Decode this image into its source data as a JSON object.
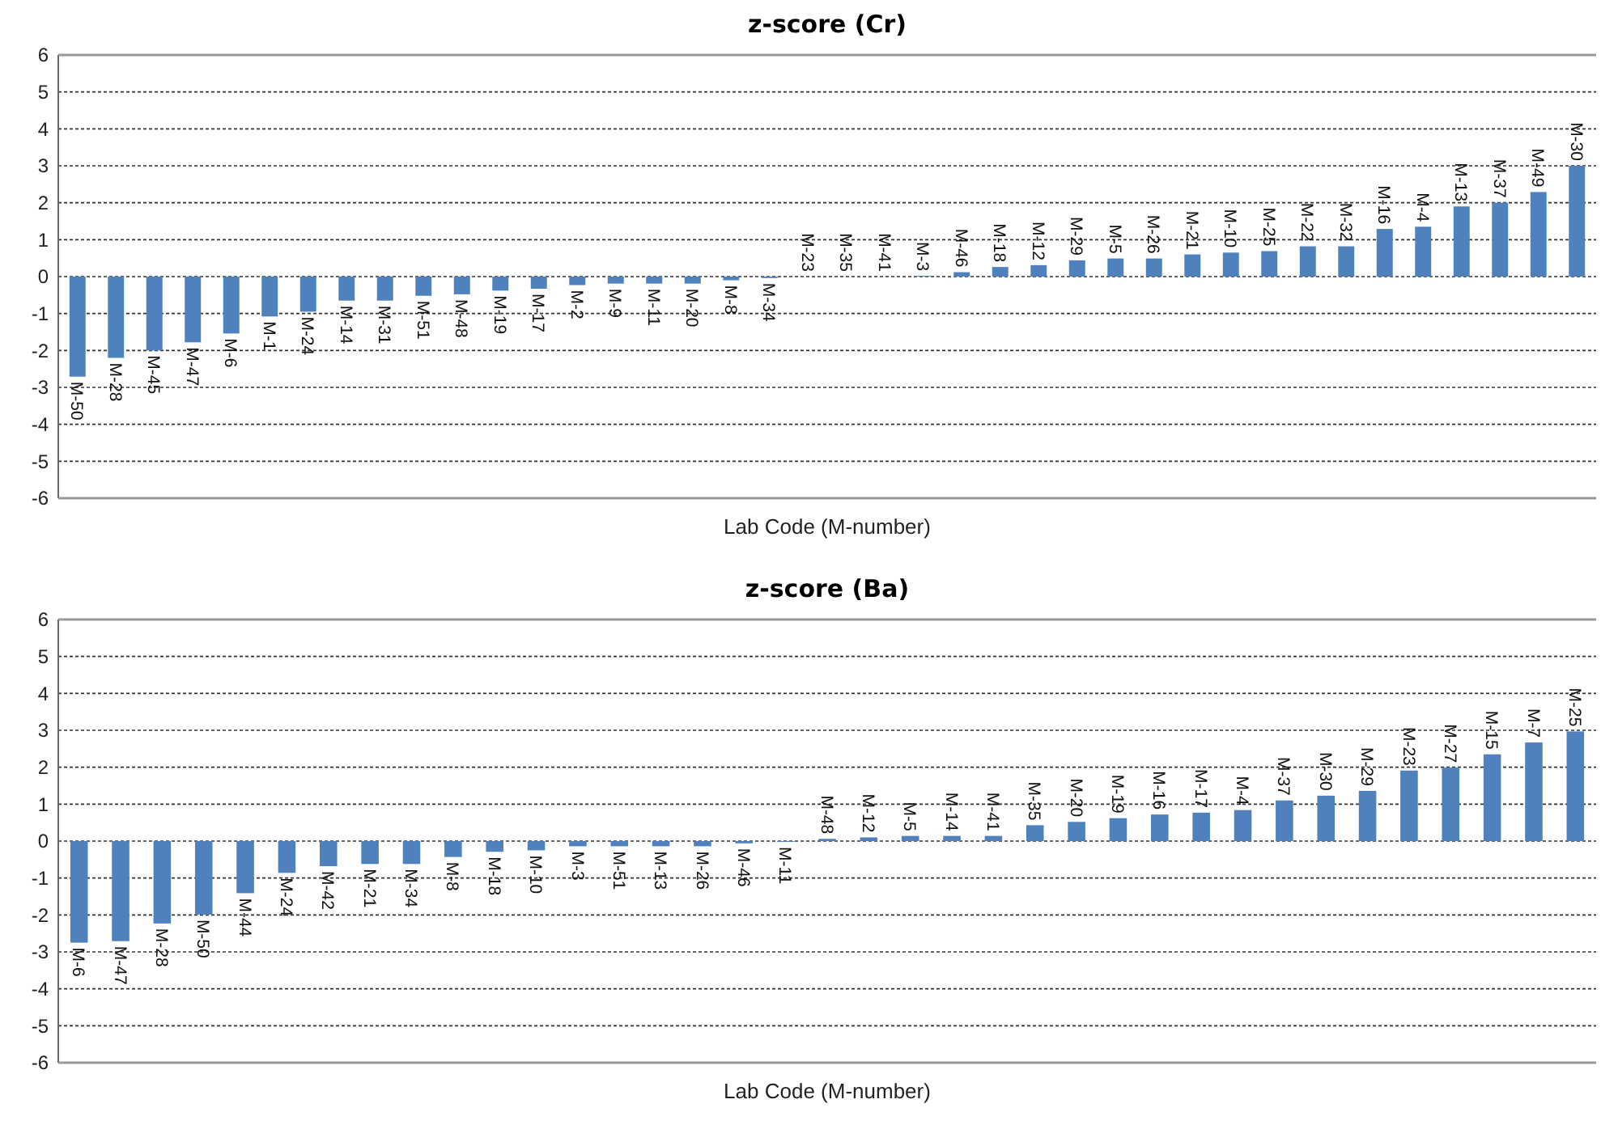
{
  "chart_data": [
    {
      "type": "bar",
      "title": "z-score (Cr)",
      "xlabel": "Lab Code (M-number)",
      "categories": [
        "M-50",
        "M-28",
        "M-45",
        "M-47",
        "M-6",
        "M-1",
        "M-24",
        "M-14",
        "M-31",
        "M-51",
        "M-48",
        "M-19",
        "M-17",
        "M-2",
        "M-9",
        "M-11",
        "M-20",
        "M-8",
        "M-34",
        "M-23",
        "M-35",
        "M-41",
        "M-3",
        "M-46",
        "M-18",
        "M-12",
        "M-29",
        "M-5",
        "M-26",
        "M-21",
        "M-10",
        "M-25",
        "M-22",
        "M-32",
        "M-16",
        "M-4",
        "M-13",
        "M-37",
        "M-49",
        "M-30"
      ],
      "values": [
        -2.71,
        -2.2,
        -2.0,
        -1.78,
        -1.54,
        -1.08,
        -0.95,
        -0.65,
        -0.65,
        -0.52,
        -0.48,
        -0.38,
        -0.33,
        -0.23,
        -0.19,
        -0.19,
        -0.19,
        -0.1,
        -0.04,
        0,
        0,
        0,
        0.02,
        0.12,
        0.26,
        0.31,
        0.44,
        0.49,
        0.49,
        0.6,
        0.65,
        0.69,
        0.82,
        0.82,
        1.29,
        1.35,
        1.9,
        2.0,
        2.29,
        3.0
      ],
      "color": "#4f81bd",
      "ylim": [
        -6,
        6
      ],
      "yticks": [
        -6,
        -5,
        -4,
        -3,
        -2,
        -1,
        0,
        1,
        2,
        3,
        4,
        5,
        6
      ],
      "grid": "y"
    },
    {
      "type": "bar",
      "title": "z-score (Ba)",
      "xlabel": "Lab Code (M-number)",
      "categories": [
        "M-6",
        "M-47",
        "M-28",
        "M-50",
        "M-44",
        "M-24",
        "M-42",
        "M-21",
        "M-34",
        "M-8",
        "M-18",
        "M-10",
        "M-3",
        "M-51",
        "M-13",
        "M-26",
        "M-46",
        "M-11",
        "M-48",
        "M-12",
        "M-5",
        "M-14",
        "M-41",
        "M-35",
        "M-20",
        "M-19",
        "M-16",
        "M-17",
        "M-4",
        "M-37",
        "M-30",
        "M-29",
        "M-23",
        "M-27",
        "M-15",
        "M-7",
        "M-25"
      ],
      "values": [
        -2.75,
        -2.71,
        -2.23,
        -1.99,
        -1.41,
        -0.86,
        -0.68,
        -0.62,
        -0.62,
        -0.43,
        -0.29,
        -0.25,
        -0.14,
        -0.14,
        -0.14,
        -0.14,
        -0.06,
        -0.02,
        0.06,
        0.1,
        0.14,
        0.14,
        0.14,
        0.43,
        0.52,
        0.62,
        0.72,
        0.77,
        0.84,
        1.1,
        1.23,
        1.36,
        1.91,
        1.99,
        2.35,
        2.67,
        2.97
      ],
      "color": "#4f81bd",
      "ylim": [
        -6,
        6
      ],
      "yticks": [
        -6,
        -5,
        -4,
        -3,
        -2,
        -1,
        0,
        1,
        2,
        3,
        4,
        5,
        6
      ],
      "grid": "y"
    }
  ]
}
